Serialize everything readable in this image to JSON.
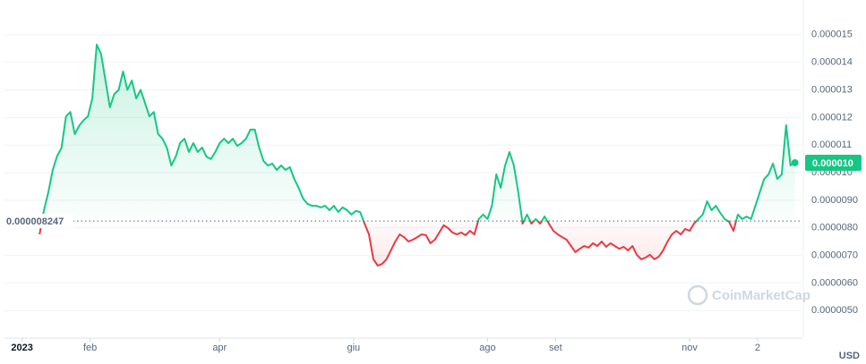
{
  "chart_data": {
    "type": "line",
    "baseline": 8.247e-06,
    "current_price_label": "0.000010",
    "watermark": "CoinMarketCap",
    "currency": "USD",
    "up_color": "#16c784",
    "down_color": "#ea3943",
    "xlim": [
      -8,
      355
    ],
    "xticks": [
      {
        "value": 0,
        "label": "2023"
      },
      {
        "value": 31,
        "label": "feb"
      },
      {
        "value": 90,
        "label": "apr"
      },
      {
        "value": 151,
        "label": "giu"
      },
      {
        "value": 212,
        "label": "ago"
      },
      {
        "value": 243,
        "label": "set"
      },
      {
        "value": 304,
        "label": "nov"
      },
      {
        "value": 335,
        "label": "2"
      }
    ],
    "ylim": [
      4.1e-06,
      1.6e-05
    ],
    "yticks": [
      {
        "value": 5e-06,
        "label": "0.0000050"
      },
      {
        "value": 6e-06,
        "label": "0.0000060"
      },
      {
        "value": 7e-06,
        "label": "0.0000070"
      },
      {
        "value": 8e-06,
        "label": "0.0000080"
      },
      {
        "value": 9e-06,
        "label": "0.0000090"
      },
      {
        "value": 1e-05,
        "label": "0.000010"
      },
      1.1e-05,
      1.2e-05,
      1.3e-05,
      1.4e-05,
      1.5e-05
    ],
    "grid": true,
    "x": [
      8,
      10,
      12,
      14,
      16,
      18,
      20,
      22,
      24,
      26,
      28,
      30,
      32,
      34,
      36,
      38,
      40,
      42,
      44,
      46,
      48,
      50,
      52,
      54,
      56,
      58,
      60,
      62,
      64,
      66,
      68,
      70,
      72,
      74,
      76,
      78,
      80,
      82,
      84,
      86,
      88,
      90,
      92,
      94,
      96,
      98,
      100,
      102,
      104,
      106,
      108,
      110,
      112,
      114,
      116,
      118,
      120,
      122,
      124,
      126,
      128,
      130,
      132,
      134,
      136,
      138,
      140,
      142,
      144,
      146,
      148,
      150,
      152,
      154,
      156,
      158,
      160,
      162,
      164,
      166,
      168,
      170,
      172,
      174,
      176,
      178,
      180,
      182,
      184,
      186,
      188,
      190,
      192,
      194,
      196,
      198,
      200,
      202,
      204,
      206,
      208,
      210,
      212,
      214,
      216,
      218,
      220,
      222,
      224,
      226,
      228,
      230,
      232,
      234,
      236,
      238,
      240,
      242,
      244,
      246,
      248,
      250,
      252,
      254,
      256,
      258,
      260,
      262,
      264,
      266,
      268,
      270,
      272,
      274,
      276,
      278,
      280,
      282,
      284,
      286,
      288,
      290,
      292,
      294,
      296,
      298,
      300,
      302,
      304,
      306,
      308,
      310,
      312,
      314,
      316,
      318,
      320,
      322,
      324,
      326,
      328,
      330,
      332,
      334,
      336,
      338,
      340,
      342,
      344,
      346,
      348,
      350,
      352
    ],
    "values": [
      7.76e-06,
      8.64e-06,
      9.29e-06,
      1.01e-05,
      1.06e-05,
      1.09e-05,
      1.204e-05,
      1.22e-05,
      1.14e-05,
      1.17e-05,
      1.19e-05,
      1.204e-05,
      1.269e-05,
      1.464e-05,
      1.43e-05,
      1.334e-05,
      1.237e-05,
      1.285e-05,
      1.3e-05,
      1.367e-05,
      1.3e-05,
      1.334e-05,
      1.269e-05,
      1.3e-05,
      1.253e-05,
      1.204e-05,
      1.22e-05,
      1.14e-05,
      1.123e-05,
      1.09e-05,
      1.026e-05,
      1.058e-05,
      1.107e-05,
      1.123e-05,
      1.075e-05,
      1.107e-05,
      1.075e-05,
      1.091e-05,
      1.058e-05,
      1.049e-05,
      1.075e-05,
      1.107e-05,
      1.123e-05,
      1.107e-05,
      1.123e-05,
      1.097e-05,
      1.107e-05,
      1.123e-05,
      1.156e-05,
      1.156e-05,
      1.091e-05,
      1.042e-05,
      1.026e-05,
      1.033e-05,
      1.01e-05,
      1.026e-05,
      1.01e-05,
      1.02e-05,
      9.77e-06,
      9.45e-06,
      9.06e-06,
      8.87e-06,
      8.8e-06,
      8.8e-06,
      8.74e-06,
      8.8e-06,
      8.64e-06,
      8.8e-06,
      8.57e-06,
      8.74e-06,
      8.64e-06,
      8.48e-06,
      8.61e-06,
      8.57e-06,
      8.15e-06,
      7.76e-06,
      6.86e-06,
      6.63e-06,
      6.69e-06,
      6.86e-06,
      7.18e-06,
      7.5e-06,
      7.76e-06,
      7.66e-06,
      7.5e-06,
      7.57e-06,
      7.66e-06,
      7.76e-06,
      7.73e-06,
      7.44e-06,
      7.57e-06,
      7.83e-06,
      8.09e-06,
      7.99e-06,
      7.83e-06,
      7.76e-06,
      7.83e-06,
      7.73e-06,
      7.89e-06,
      7.76e-06,
      8.32e-06,
      8.48e-06,
      8.32e-06,
      8.8e-06,
      9.94e-06,
      9.45e-06,
      1.026e-05,
      1.075e-05,
      1.026e-05,
      9.29e-06,
      8.15e-06,
      8.48e-06,
      8.15e-06,
      8.32e-06,
      8.15e-06,
      8.41e-06,
      8.15e-06,
      7.89e-06,
      7.76e-06,
      7.66e-06,
      7.57e-06,
      7.34e-06,
      7.12e-06,
      7.24e-06,
      7.34e-06,
      7.28e-06,
      7.44e-06,
      7.34e-06,
      7.5e-06,
      7.31e-06,
      7.44e-06,
      7.34e-06,
      7.24e-06,
      7.31e-06,
      7.18e-06,
      7.34e-06,
      7.02e-06,
      6.86e-06,
      6.92e-06,
      7.02e-06,
      6.86e-06,
      6.95e-06,
      7.18e-06,
      7.5e-06,
      7.76e-06,
      7.89e-06,
      7.76e-06,
      7.96e-06,
      7.89e-06,
      8.15e-06,
      8.32e-06,
      8.48e-06,
      8.96e-06,
      8.64e-06,
      8.8e-06,
      8.54e-06,
      8.32e-06,
      8.22e-06,
      7.89e-06,
      8.48e-06,
      8.32e-06,
      8.41e-06,
      8.32e-06,
      8.8e-06,
      9.29e-06,
      9.77e-06,
      9.94e-06,
      1.033e-05,
      9.77e-06,
      9.94e-06,
      1.172e-05,
      1.026e-05,
      1.036e-05
    ]
  }
}
